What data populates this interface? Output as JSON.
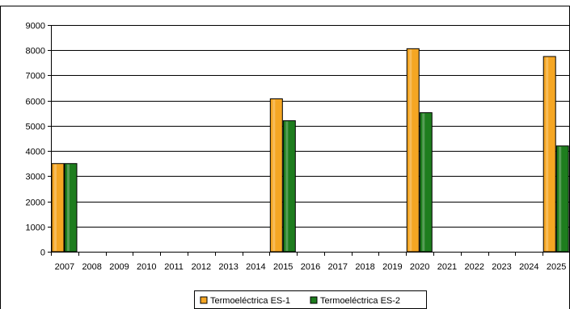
{
  "chart_data": {
    "type": "bar",
    "title": "",
    "xlabel": "",
    "ylabel": "",
    "categories": [
      "2007",
      "2008",
      "2009",
      "2010",
      "2011",
      "2012",
      "2013",
      "2014",
      "2015",
      "2016",
      "2017",
      "2018",
      "2019",
      "2020",
      "2021",
      "2022",
      "2023",
      "2024",
      "2025"
    ],
    "series": [
      {
        "name": "Termoeléctrica ES-1",
        "color": "#F5A623",
        "values": [
          3500,
          null,
          null,
          null,
          null,
          null,
          null,
          null,
          6070,
          null,
          null,
          null,
          null,
          8060,
          null,
          null,
          null,
          null,
          7750
        ]
      },
      {
        "name": "Termoeléctrica ES-2",
        "color": "#1E7D1E",
        "values": [
          3500,
          null,
          null,
          null,
          null,
          null,
          null,
          null,
          5200,
          null,
          null,
          null,
          null,
          5520,
          null,
          null,
          null,
          null,
          4200
        ]
      }
    ],
    "ylim": [
      0,
      9000
    ],
    "yticks": [
      0,
      1000,
      2000,
      3000,
      4000,
      5000,
      6000,
      7000,
      8000,
      9000
    ],
    "grid": true,
    "legend_position": "bottom"
  }
}
